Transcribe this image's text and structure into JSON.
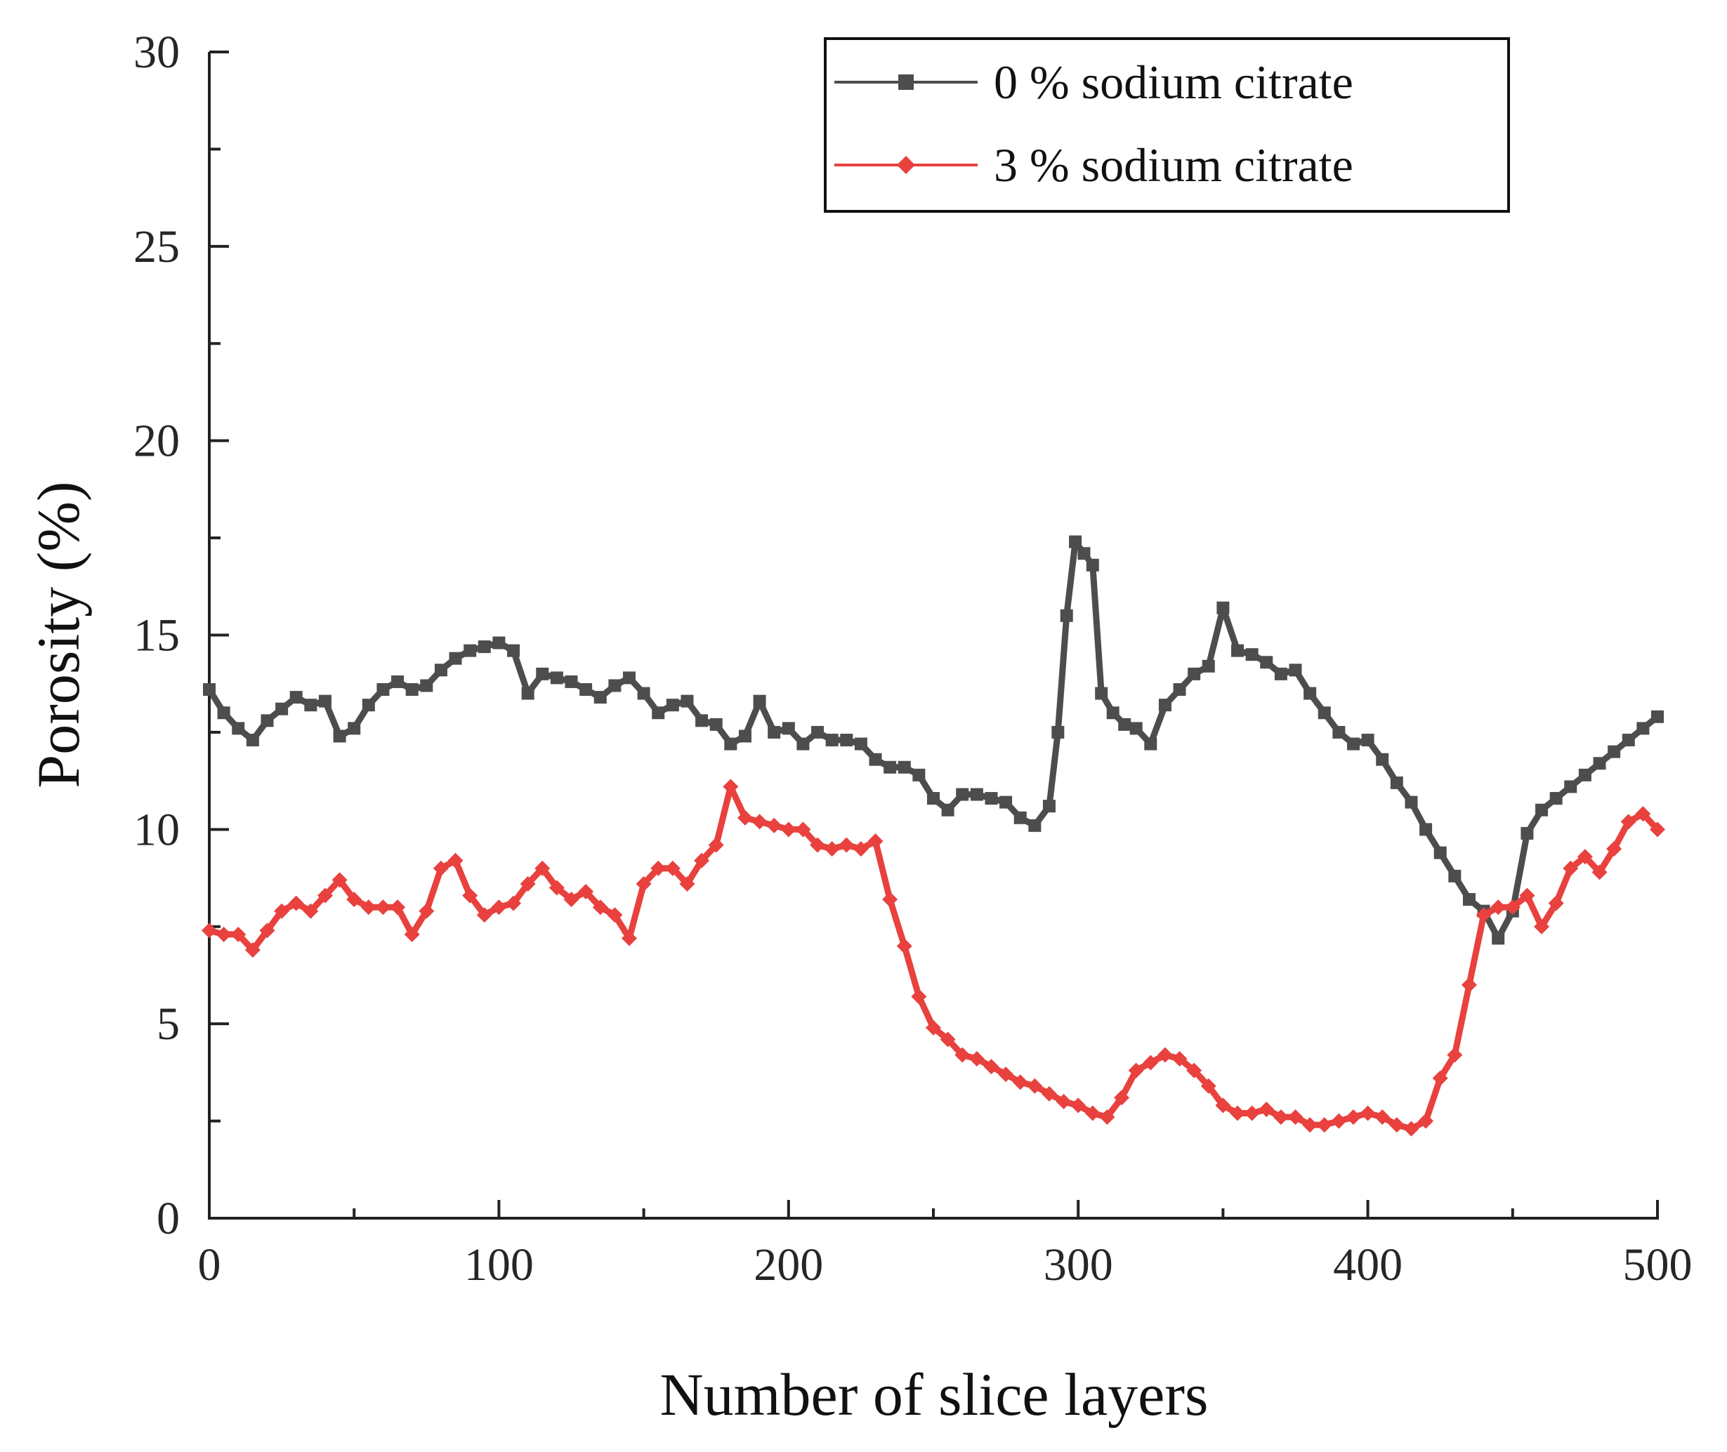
{
  "chart_data": {
    "type": "line",
    "title": "",
    "xlabel": "Number of slice layers",
    "ylabel": "Porosity (%)",
    "xlim": [
      0,
      500
    ],
    "ylim": [
      0,
      30
    ],
    "xticks": [
      0,
      100,
      200,
      300,
      400,
      500
    ],
    "yticks": [
      0,
      5,
      10,
      15,
      20,
      25,
      30
    ],
    "grid": false,
    "legend": "top-right",
    "series": [
      {
        "name": "0 % sodium citrate",
        "color": "#4d4d4d",
        "marker": "square",
        "x": [
          0,
          5,
          10,
          15,
          20,
          25,
          30,
          35,
          40,
          45,
          50,
          55,
          60,
          65,
          70,
          75,
          80,
          85,
          90,
          95,
          100,
          105,
          110,
          115,
          120,
          125,
          130,
          135,
          140,
          145,
          150,
          155,
          160,
          165,
          170,
          175,
          180,
          185,
          190,
          195,
          200,
          205,
          210,
          215,
          220,
          225,
          230,
          235,
          240,
          245,
          250,
          255,
          260,
          265,
          270,
          275,
          280,
          285,
          290,
          293,
          296,
          299,
          302,
          305,
          308,
          312,
          316,
          320,
          325,
          330,
          335,
          340,
          345,
          350,
          355,
          360,
          365,
          370,
          375,
          380,
          385,
          390,
          395,
          400,
          405,
          410,
          415,
          420,
          425,
          430,
          435,
          440,
          445,
          450,
          455,
          460,
          465,
          470,
          475,
          480,
          485,
          490,
          495,
          500
        ],
        "y": [
          13.6,
          13.0,
          12.6,
          12.3,
          12.8,
          13.1,
          13.4,
          13.2,
          13.3,
          12.4,
          12.6,
          13.2,
          13.6,
          13.8,
          13.6,
          13.7,
          14.1,
          14.4,
          14.6,
          14.7,
          14.8,
          14.6,
          13.5,
          14.0,
          13.9,
          13.8,
          13.6,
          13.4,
          13.7,
          13.9,
          13.5,
          13.0,
          13.2,
          13.3,
          12.8,
          12.7,
          12.2,
          12.4,
          13.3,
          12.5,
          12.6,
          12.2,
          12.5,
          12.3,
          12.3,
          12.2,
          11.8,
          11.6,
          11.6,
          11.4,
          10.8,
          10.5,
          10.9,
          10.9,
          10.8,
          10.7,
          10.3,
          10.1,
          10.6,
          12.5,
          15.5,
          17.4,
          17.1,
          16.8,
          13.5,
          13.0,
          12.7,
          12.6,
          12.2,
          13.2,
          13.6,
          14.0,
          14.2,
          15.7,
          14.6,
          14.5,
          14.3,
          14.0,
          14.1,
          13.5,
          13.0,
          12.5,
          12.2,
          12.3,
          11.8,
          11.2,
          10.7,
          10.0,
          9.4,
          8.8,
          8.2,
          7.9,
          7.2,
          7.9,
          9.9,
          10.5,
          10.8,
          11.1,
          11.4,
          11.7,
          12.0,
          12.3,
          12.6,
          12.9
        ]
      },
      {
        "name": "3 % sodium citrate",
        "color": "#e8413e",
        "marker": "diamond",
        "x": [
          0,
          5,
          10,
          15,
          20,
          25,
          30,
          35,
          40,
          45,
          50,
          55,
          60,
          65,
          70,
          75,
          80,
          85,
          90,
          95,
          100,
          105,
          110,
          115,
          120,
          125,
          130,
          135,
          140,
          145,
          150,
          155,
          160,
          165,
          170,
          175,
          180,
          185,
          190,
          195,
          200,
          205,
          210,
          215,
          220,
          225,
          230,
          235,
          240,
          245,
          250,
          255,
          260,
          265,
          270,
          275,
          280,
          285,
          290,
          295,
          300,
          305,
          310,
          315,
          320,
          325,
          330,
          335,
          340,
          345,
          350,
          355,
          360,
          365,
          370,
          375,
          380,
          385,
          390,
          395,
          400,
          405,
          410,
          415,
          420,
          425,
          430,
          435,
          440,
          445,
          450,
          455,
          460,
          465,
          470,
          475,
          480,
          485,
          490,
          495,
          500
        ],
        "y": [
          7.4,
          7.3,
          7.3,
          6.9,
          7.4,
          7.9,
          8.1,
          7.9,
          8.3,
          8.7,
          8.2,
          8.0,
          8.0,
          8.0,
          7.3,
          7.9,
          9.0,
          9.2,
          8.3,
          7.8,
          8.0,
          8.1,
          8.6,
          9.0,
          8.5,
          8.2,
          8.4,
          8.0,
          7.8,
          7.2,
          8.6,
          9.0,
          9.0,
          8.6,
          9.2,
          9.6,
          11.1,
          10.3,
          10.2,
          10.1,
          10.0,
          10.0,
          9.6,
          9.5,
          9.6,
          9.5,
          9.7,
          8.2,
          7.0,
          5.7,
          4.9,
          4.6,
          4.2,
          4.1,
          3.9,
          3.7,
          3.5,
          3.4,
          3.2,
          3.0,
          2.9,
          2.7,
          2.6,
          3.1,
          3.8,
          4.0,
          4.2,
          4.1,
          3.8,
          3.4,
          2.9,
          2.7,
          2.7,
          2.8,
          2.6,
          2.6,
          2.4,
          2.4,
          2.5,
          2.6,
          2.7,
          2.6,
          2.4,
          2.3,
          2.5,
          3.6,
          4.2,
          6.0,
          7.8,
          8.0,
          8.0,
          8.3,
          7.5,
          8.1,
          9.0,
          9.3,
          8.9,
          9.5,
          10.2,
          10.4,
          10.0
        ]
      }
    ]
  }
}
